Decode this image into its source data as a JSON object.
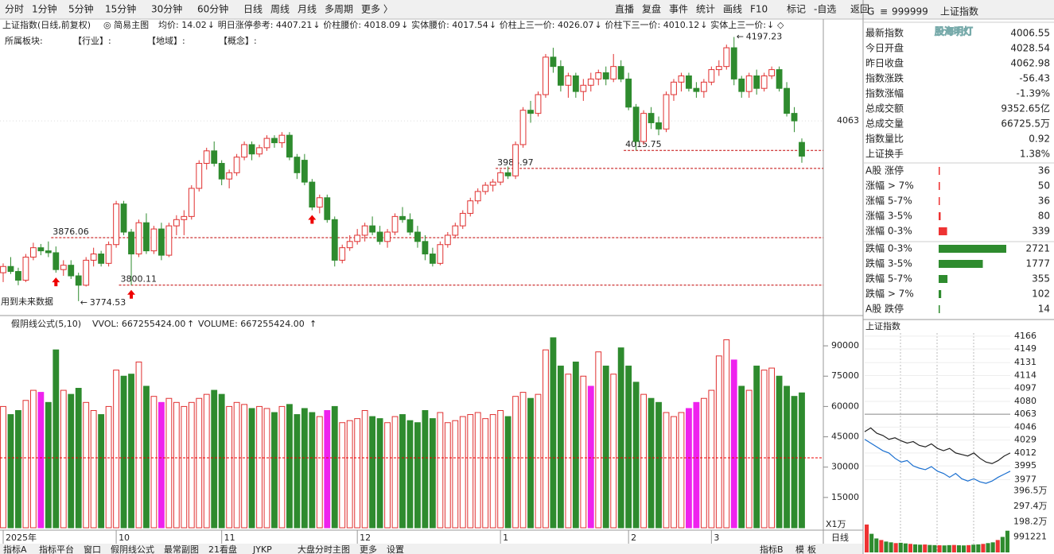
{
  "toolbar": {
    "left": [
      "分时",
      "1分钟",
      "5分钟",
      "15分钟",
      "30分钟",
      "60分钟",
      "日线",
      "周线",
      "月线",
      "多周期",
      "更多 〉"
    ],
    "active": 6,
    "right": [
      "直播",
      "复盘",
      "事件",
      "统计",
      "画线",
      "F10",
      "标记",
      "-自选",
      "返回"
    ]
  },
  "info_bar": {
    "title": "上证指数(日线,前复权)",
    "mode": "◎ 简易主图",
    "items": [
      {
        "text": "均价: 14.02",
        "arrow": "↓"
      },
      {
        "text": "明日涨停参考: 4407.21",
        "arrow": "↓"
      },
      {
        "text": "价柱腰价: 4018.09",
        "arrow": "↓"
      },
      {
        "text": "实体腰价: 4017.54",
        "arrow": "↓"
      },
      {
        "text": "价柱上三一价: 4026.07",
        "arrow": "↓"
      },
      {
        "text": "价柱下三一价: 4010.12",
        "arrow": "↓"
      },
      {
        "text": "实体上三一价:",
        "arrow": "↓"
      }
    ],
    "tail": "◇",
    "arrow_color": "#2e8b2e"
  },
  "sector_bar": [
    "所属板块:",
    "【行业】:",
    "【地域】:",
    "【概念】:"
  ],
  "chart_data": {
    "type": "candlestick",
    "ylim": [
      3754,
      4203
    ],
    "yticks": [
      4063
    ],
    "candles": [
      [
        3820,
        3835,
        3805,
        3830
      ],
      [
        3830,
        3845,
        3818,
        3822
      ],
      [
        3822,
        3828,
        3800,
        3808
      ],
      [
        3808,
        3850,
        3805,
        3845
      ],
      [
        3845,
        3868,
        3840,
        3860
      ],
      [
        3860,
        3866,
        3848,
        3855
      ],
      [
        3855,
        3870,
        3845,
        3852
      ],
      [
        3852,
        3862,
        3820,
        3825
      ],
      [
        3825,
        3840,
        3815,
        3832
      ],
      [
        3832,
        3840,
        3810,
        3815
      ],
      [
        3815,
        3820,
        3774.53,
        3800
      ],
      [
        3800,
        3845,
        3798,
        3840
      ],
      [
        3840,
        3860,
        3830,
        3850
      ],
      [
        3850,
        3855,
        3830,
        3835
      ],
      [
        3835,
        3870,
        3830,
        3865
      ],
      [
        3865,
        3935,
        3860,
        3930
      ],
      [
        3930,
        3935,
        3880,
        3885
      ],
      [
        3885,
        3890,
        3800.11,
        3850
      ],
      [
        3850,
        3905,
        3845,
        3900
      ],
      [
        3900,
        3915,
        3850,
        3855
      ],
      [
        3855,
        3895,
        3850,
        3890
      ],
      [
        3890,
        3900,
        3840,
        3848
      ],
      [
        3848,
        3900,
        3845,
        3895
      ],
      [
        3895,
        3912,
        3880,
        3905
      ],
      [
        3905,
        3920,
        3880,
        3910
      ],
      [
        3910,
        3960,
        3905,
        3955
      ],
      [
        3955,
        4000,
        3950,
        3995
      ],
      [
        3995,
        4020,
        3985,
        4015
      ],
      [
        4015,
        4030,
        3990,
        3995
      ],
      [
        3995,
        4000,
        3960,
        3970
      ],
      [
        3970,
        3985,
        3955,
        3980
      ],
      [
        3980,
        4010,
        3975,
        4005
      ],
      [
        4005,
        4030,
        4000,
        4025
      ],
      [
        4025,
        4030,
        4000,
        4010
      ],
      [
        4010,
        4025,
        4005,
        4020
      ],
      [
        4020,
        4040,
        4015,
        4035
      ],
      [
        4035,
        4040,
        4020,
        4028
      ],
      [
        4028,
        4045,
        4020,
        4040
      ],
      [
        4040,
        4045,
        4000,
        4005
      ],
      [
        4005,
        4010,
        3970,
        3980
      ],
      [
        4000,
        4010,
        3960,
        3965
      ],
      [
        3965,
        3970,
        3920,
        3925
      ],
      [
        3925,
        3945,
        3915,
        3940
      ],
      [
        3940,
        3945,
        3900,
        3905
      ],
      [
        3905,
        3910,
        3830,
        3840
      ],
      [
        3840,
        3865,
        3835,
        3860
      ],
      [
        3860,
        3880,
        3855,
        3870
      ],
      [
        3870,
        3890,
        3865,
        3880
      ],
      [
        3880,
        3900,
        3870,
        3895
      ],
      [
        3895,
        3910,
        3880,
        3885
      ],
      [
        3885,
        3895,
        3865,
        3870
      ],
      [
        3870,
        3890,
        3860,
        3885
      ],
      [
        3885,
        3915,
        3880,
        3910
      ],
      [
        3910,
        3925,
        3900,
        3905
      ],
      [
        3905,
        3915,
        3880,
        3885
      ],
      [
        3885,
        3895,
        3860,
        3870
      ],
      [
        3870,
        3880,
        3840,
        3850
      ],
      [
        3850,
        3860,
        3830,
        3835
      ],
      [
        3835,
        3870,
        3832,
        3865
      ],
      [
        3865,
        3885,
        3860,
        3880
      ],
      [
        3880,
        3900,
        3875,
        3895
      ],
      [
        3895,
        3920,
        3890,
        3915
      ],
      [
        3915,
        3940,
        3910,
        3935
      ],
      [
        3935,
        3955,
        3930,
        3950
      ],
      [
        3950,
        3965,
        3945,
        3960
      ],
      [
        3960,
        3970,
        3950,
        3965
      ],
      [
        3965,
        3985,
        3960,
        3980
      ],
      [
        3980,
        3990,
        3970,
        3975
      ],
      [
        3975,
        4030,
        3970,
        4025
      ],
      [
        4025,
        4085,
        4020,
        4080
      ],
      [
        4080,
        4095,
        4060,
        4075
      ],
      [
        4075,
        4110,
        4070,
        4105
      ],
      [
        4105,
        4170,
        4100,
        4165
      ],
      [
        4165,
        4180,
        4140,
        4150
      ],
      [
        4150,
        4160,
        4110,
        4120
      ],
      [
        4120,
        4140,
        4100,
        4135
      ],
      [
        4135,
        4140,
        4100,
        4110
      ],
      [
        4110,
        4130,
        4095,
        4120
      ],
      [
        4120,
        4140,
        4110,
        4130
      ],
      [
        4130,
        4145,
        4120,
        4140
      ],
      [
        4140,
        4150,
        4120,
        4130
      ],
      [
        4130,
        4170,
        4125,
        4150
      ],
      [
        4150,
        4160,
        4125,
        4130
      ],
      [
        4130,
        4140,
        4080,
        4085
      ],
      [
        4085,
        4090,
        4015.75,
        4030
      ],
      [
        4030,
        4080,
        4025,
        4075
      ],
      [
        4075,
        4085,
        4050,
        4060
      ],
      [
        4060,
        4070,
        4040,
        4050
      ],
      [
        4050,
        4110,
        4045,
        4105
      ],
      [
        4105,
        4130,
        4095,
        4125
      ],
      [
        4125,
        4140,
        4110,
        4135
      ],
      [
        4135,
        4140,
        4110,
        4115
      ],
      [
        4115,
        4125,
        4100,
        4110
      ],
      [
        4110,
        4130,
        4100,
        4125
      ],
      [
        4125,
        4150,
        4120,
        4145
      ],
      [
        4145,
        4160,
        4135,
        4150
      ],
      [
        4150,
        4185,
        4145,
        4180
      ],
      [
        4180,
        4197.23,
        4120,
        4130
      ],
      [
        4130,
        4135,
        4100,
        4110
      ],
      [
        4110,
        4140,
        4100,
        4135
      ],
      [
        4135,
        4145,
        4105,
        4115
      ],
      [
        4115,
        4140,
        4110,
        4135
      ],
      [
        4135,
        4150,
        4130,
        4145
      ],
      [
        4145,
        4150,
        4110,
        4115
      ],
      [
        4115,
        4125,
        4070,
        4075
      ],
      [
        4075,
        4085,
        4045,
        4062.98
      ],
      [
        4028.54,
        4035,
        3996,
        4006.55
      ]
    ],
    "volumes": [
      60000,
      56000,
      58000,
      63000,
      68000,
      67000,
      62000,
      88000,
      68000,
      66000,
      69000,
      62000,
      58000,
      56000,
      60000,
      78000,
      75000,
      76000,
      82000,
      70000,
      65000,
      62000,
      64000,
      62000,
      60000,
      62000,
      64000,
      66000,
      68000,
      66000,
      60000,
      62000,
      61000,
      59000,
      60000,
      59000,
      57000,
      60000,
      61000,
      56000,
      59000,
      57000,
      55000,
      58000,
      60000,
      52000,
      53000,
      54000,
      58000,
      55000,
      54000,
      52000,
      55000,
      56000,
      53000,
      52000,
      58000,
      54000,
      57000,
      52000,
      53000,
      55000,
      56000,
      57000,
      54000,
      56000,
      58000,
      55000,
      65000,
      67000,
      64000,
      66000,
      88000,
      94000,
      80000,
      76000,
      82000,
      75000,
      70000,
      87000,
      80000,
      76000,
      89000,
      80000,
      72000,
      66000,
      64000,
      62000,
      57000,
      55000,
      57000,
      59000,
      62000,
      64000,
      68000,
      85000,
      93000,
      83000,
      70000,
      68000,
      80000,
      78000,
      79000,
      75000,
      70000,
      65000,
      66725
    ],
    "vol_ylim": [
      0,
      103800
    ],
    "vol_yticks": [
      15000,
      30000,
      45000,
      60000,
      75000,
      90000
    ],
    "vol_ref_line": 34600,
    "vol_unit": "X1万",
    "magenta_bars": [
      5,
      21,
      43,
      78,
      91,
      92,
      97
    ],
    "colors": {
      "up": "#e03030",
      "down": "#2e8b2e",
      "magenta": "#ee22ee",
      "level": "#c00000"
    },
    "levels": [
      {
        "value": 3876.06,
        "from": 7
      },
      {
        "value": 3800.11,
        "from": 16
      },
      {
        "value": 3986.97,
        "from": 66
      },
      {
        "value": 4015.75,
        "from": 83
      }
    ],
    "high_note": {
      "candle": 97,
      "prefix": "←"
    },
    "low_note": {
      "candle": 10,
      "prefix": "←"
    },
    "signals": [
      7,
      17,
      41
    ],
    "signal_note": "用到未来数据",
    "x_labels": [
      {
        "index": 0,
        "label": "2025年"
      },
      {
        "index": 15,
        "label": "10"
      },
      {
        "index": 29,
        "label": "11"
      },
      {
        "index": 47,
        "label": "12"
      },
      {
        "index": 66,
        "label": "1"
      },
      {
        "index": 83,
        "label": "2"
      },
      {
        "index": 94,
        "label": "3"
      }
    ],
    "period_label": "日线",
    "vol_header": {
      "name": "假阴线公式(5,10)",
      "vvol": "VVOL: 667255424.00",
      "volume": "VOLUME: 667255424.00",
      "arrow": "↑"
    }
  },
  "quote_panel": {
    "flag": "G",
    "menu": "≡",
    "code": "999999",
    "name": "上证指数",
    "watermark": "股海明灯",
    "stats": [
      [
        "最新指数",
        "4006.55"
      ],
      [
        "今日开盘",
        "4028.54"
      ],
      [
        "昨日收盘",
        "4062.98"
      ],
      [
        "指数涨跌",
        "-56.43"
      ],
      [
        "指数涨幅",
        "-1.39%"
      ],
      [
        "总成交额",
        "9352.65亿"
      ],
      [
        "总成交量",
        "66725.5万"
      ],
      [
        "指数量比",
        "0.92"
      ],
      [
        "上证换手",
        "1.38%"
      ]
    ],
    "up": [
      [
        "A股 涨停",
        36
      ],
      [
        "涨幅 > 7%",
        50
      ],
      [
        "涨幅 5-7%",
        36
      ],
      [
        "涨幅 3-5%",
        80
      ],
      [
        "涨幅 0-3%",
        339
      ]
    ],
    "down": [
      [
        "跌幅 0-3%",
        2721
      ],
      [
        "跌幅 3-5%",
        1777
      ],
      [
        "跌幅 5-7%",
        355
      ],
      [
        "跌幅 > 7%",
        102
      ],
      [
        "A股 跌停",
        14
      ]
    ]
  },
  "mini_chart": {
    "title": "上证指数",
    "ylim": [
      3970,
      4170
    ],
    "yticks": [
      4166,
      4149,
      4131,
      4114,
      4097,
      4080,
      4063,
      4046,
      4029,
      4012,
      3995,
      3977
    ],
    "base": 4063,
    "price": [
      4040,
      4045,
      4038,
      4035,
      4030,
      4032,
      4028,
      4025,
      4027,
      4022,
      4020,
      4024,
      4018,
      4015,
      4018,
      4012,
      4010,
      4008,
      4012,
      4005,
      4000,
      3998,
      4002,
      4008,
      4012
    ],
    "avg": [
      4030,
      4025,
      4020,
      4015,
      4012,
      4005,
      4000,
      4002,
      3995,
      3992,
      3990,
      3994,
      3988,
      3985,
      3980,
      3985,
      3978,
      3975,
      3978,
      3974,
      3972,
      3975,
      3980,
      3984,
      3988
    ],
    "vol_ylim": [
      0,
      4000000
    ],
    "vol_yticks": [
      {
        "value": 3965000,
        "label": "396.5万"
      },
      {
        "value": 2974000,
        "label": "297.4万"
      },
      {
        "value": 1982000,
        "label": "198.2万"
      },
      991221
    ],
    "volumes": [
      1800000,
      1200000,
      900000,
      800000,
      700000,
      650000,
      600000,
      620000,
      580000,
      550000,
      520000,
      500000,
      510000,
      480000,
      470000,
      460000,
      450000,
      470000,
      480000,
      460000,
      450000,
      470000,
      500000,
      520000,
      550000,
      600000,
      650000,
      800000,
      1000000,
      1400000
    ]
  },
  "bottom_tabs": {
    "left": [
      "指标A",
      "指标平台",
      "窗口",
      "假阴线公式",
      "最常副图",
      "21看盘",
      "JYKP",
      "大盘分时主图",
      "更多",
      "设置"
    ],
    "active": 3,
    "right": [
      "指标B",
      "模",
      "板"
    ]
  }
}
